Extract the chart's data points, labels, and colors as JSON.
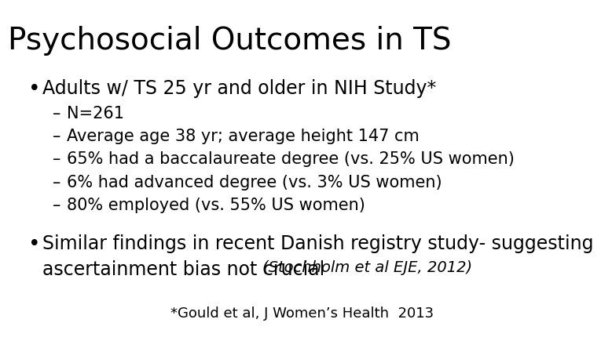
{
  "title": "Psychosocial Outcomes in TS",
  "title_fontsize": 28,
  "background_color": "#ffffff",
  "text_color": "#000000",
  "bullet1": "Adults w/ TS 25 yr and older in NIH Study*",
  "bullet1_fontsize": 17,
  "sub_bullets": [
    "N=261",
    "Average age 38 yr; average height 147 cm",
    "65% had a baccalaureate degree (vs. 25% US women)",
    "6% had advanced degree (vs. 3% US women)",
    "80% employed (vs. 55% US women)"
  ],
  "sub_bullet_fontsize": 15,
  "bullet2_line1": "Similar findings in recent Danish registry study- suggesting",
  "bullet2_line2_main": "ascertainment bias not crucial ",
  "bullet2_line2_italic": "(Stochholm et al EJE, 2012)",
  "bullet2_fontsize": 17,
  "footnote": "*Gould et al, J Women’s Health  2013",
  "footnote_fontsize": 13
}
